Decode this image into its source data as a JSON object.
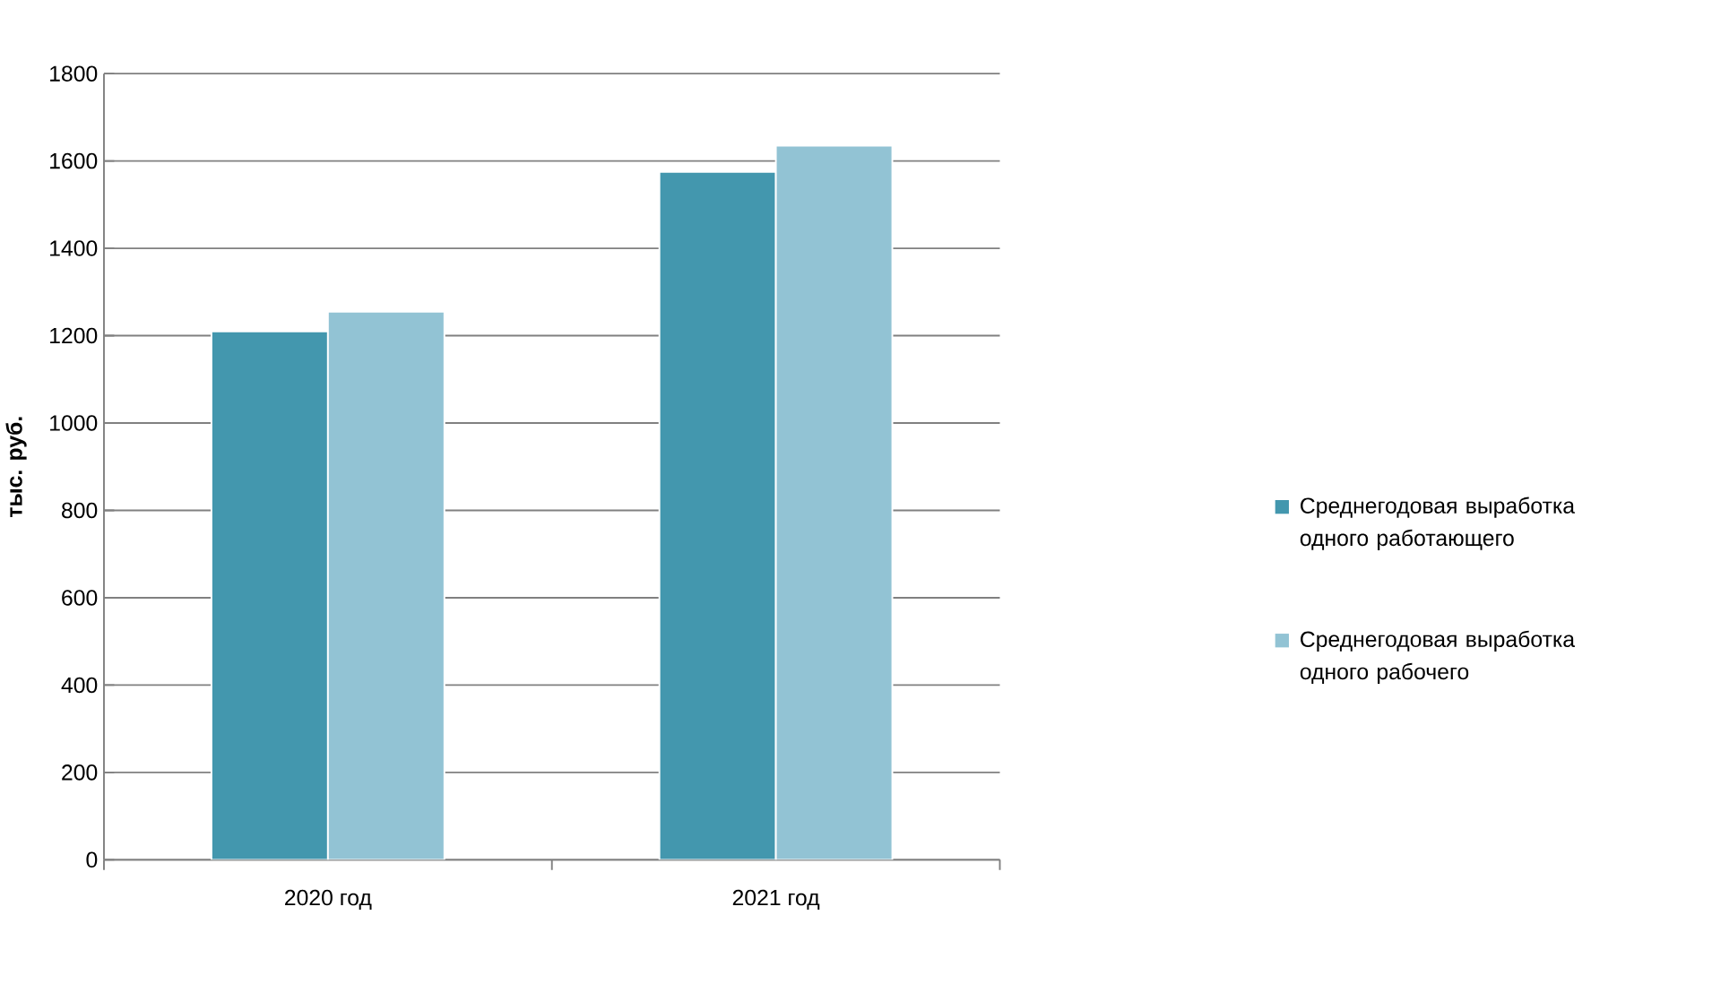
{
  "chart_data": {
    "type": "bar",
    "ylabel": "тыс. руб.",
    "categories": [
      "2020 год",
      "2021 год"
    ],
    "series": [
      {
        "name": "Среднегодовая выработка одного работающего",
        "color": "#4397ae",
        "values": [
          1210,
          1575
        ]
      },
      {
        "name": "Среднегодовая выработка одного рабочего",
        "color": "#92c3d4",
        "values": [
          1255,
          1635
        ]
      }
    ],
    "ylim": [
      0,
      1800
    ],
    "yticks": [
      0,
      200,
      400,
      600,
      800,
      1000,
      1200,
      1400,
      1600,
      1800
    ],
    "grid": "y",
    "legend": "right"
  }
}
